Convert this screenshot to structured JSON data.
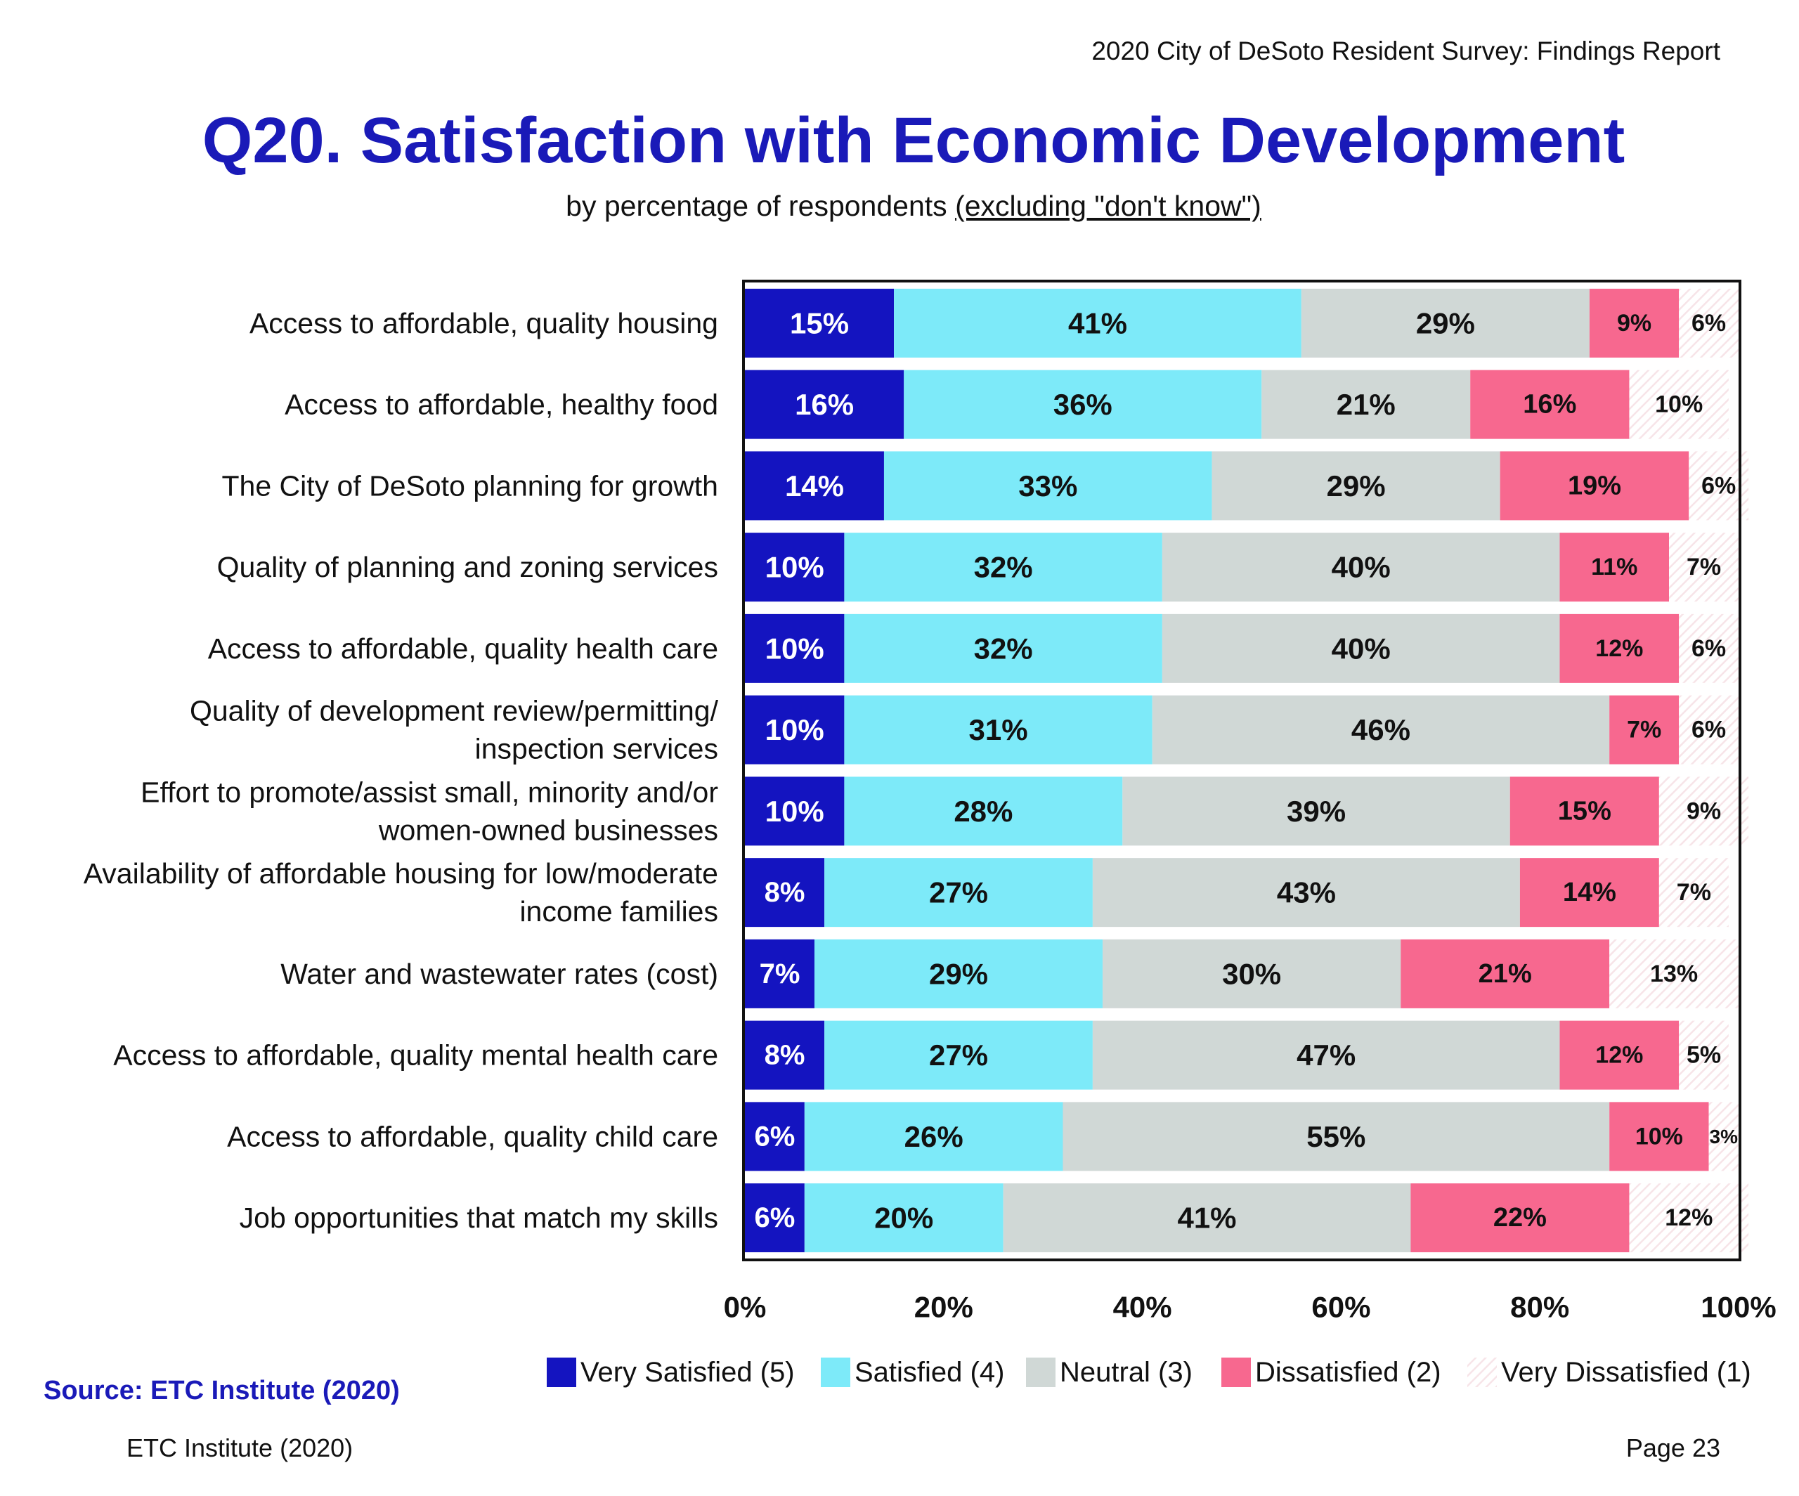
{
  "header": {
    "report_title": "2020 City of DeSoto Resident Survey:  Findings Report",
    "title": "Q20. Satisfaction with Economic Development",
    "subtitle_prefix": "by percentage of respondents ",
    "subtitle_underlined": "(excluding \"don't know\")"
  },
  "chart_data": {
    "type": "bar",
    "orientation": "horizontal-stacked-100",
    "xlim": [
      0,
      100
    ],
    "x_ticks": [
      "0%",
      "20%",
      "40%",
      "60%",
      "80%",
      "100%"
    ],
    "legend_position": "bottom",
    "categories": [
      [
        "Access to affordable, quality housing"
      ],
      [
        "Access to affordable, healthy food"
      ],
      [
        "The City of DeSoto planning for growth"
      ],
      [
        "Quality of planning and zoning services"
      ],
      [
        "Access to affordable, quality health care"
      ],
      [
        "Quality of development review/permitting/",
        "inspection services"
      ],
      [
        "Effort to promote/assist small, minority and/or",
        "women-owned businesses"
      ],
      [
        "Availability of affordable housing for low/moderate",
        "income families"
      ],
      [
        "Water and wastewater rates (cost)"
      ],
      [
        "Access to affordable, quality mental health care"
      ],
      [
        "Access to affordable, quality child care"
      ],
      [
        "Job opportunities that match my skills"
      ]
    ],
    "series": [
      {
        "name": "Very Satisfied (5)",
        "color": "#1414c0",
        "label_color": "#ffffff",
        "values": [
          15,
          16,
          14,
          10,
          10,
          10,
          10,
          8,
          7,
          8,
          6,
          6
        ]
      },
      {
        "name": "Satisfied (4)",
        "color": "#7deaf9",
        "label_color": "#111111",
        "values": [
          41,
          36,
          33,
          32,
          32,
          31,
          28,
          27,
          29,
          27,
          26,
          20
        ]
      },
      {
        "name": "Neutral (3)",
        "color": "#d0d8d6",
        "label_color": "#111111",
        "values": [
          29,
          21,
          29,
          40,
          40,
          46,
          39,
          43,
          30,
          47,
          55,
          41
        ]
      },
      {
        "name": "Dissatisfied (2)",
        "color": "#f7688f",
        "label_color": "#111111",
        "values": [
          9,
          16,
          19,
          11,
          12,
          7,
          15,
          14,
          21,
          12,
          10,
          22
        ]
      },
      {
        "name": "Very Dissatisfied (1)",
        "color": "#f7e4e8",
        "label_color": "#111111",
        "values": [
          6,
          10,
          6,
          7,
          6,
          6,
          9,
          7,
          13,
          5,
          3,
          12
        ]
      }
    ]
  },
  "footer": {
    "source": "Source:   ETC Institute (2020)",
    "left": "ETC Institute (2020)",
    "right": "Page 23"
  }
}
